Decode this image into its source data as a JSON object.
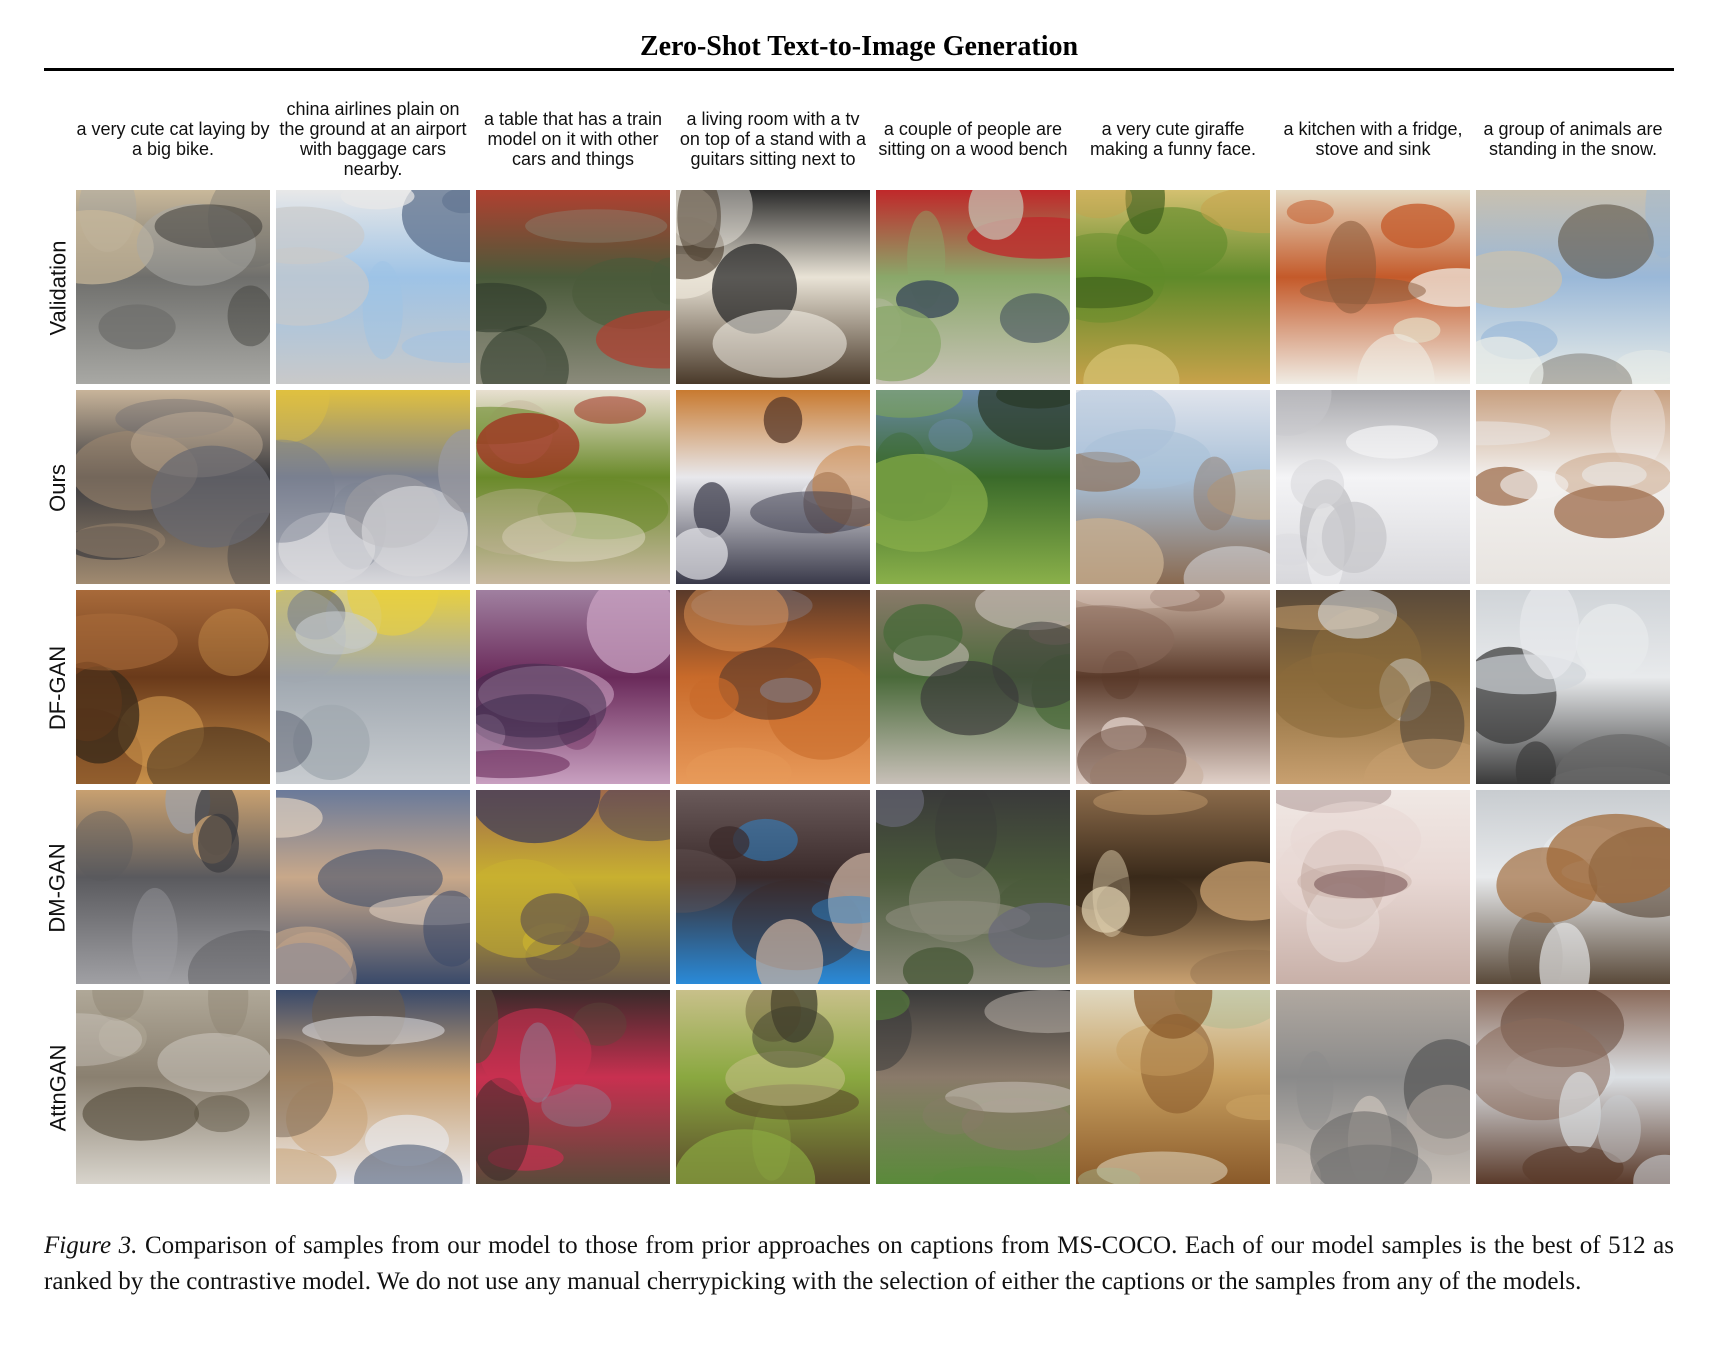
{
  "title": "Zero-Shot Text-to-Image Generation",
  "captions": [
    "a very cute cat laying by a big bike.",
    "china airlines plain on the ground at an airport with baggage cars nearby.",
    "a table that has a train model on it with other cars and things",
    "a living room with a tv on top of a stand with a guitars sitting next to",
    "a couple of people are sitting on a wood bench",
    "a very cute giraffe making a funny face.",
    "a kitchen with a fridge, stove and sink",
    "a group of animals are standing in the snow."
  ],
  "rows": [
    {
      "label": "Validation",
      "palettes": [
        [
          "#6f6f6c",
          "#a8a8a4",
          "#3b3a36",
          "#c9b89a"
        ],
        [
          "#9ec3e6",
          "#c9c9c9",
          "#5b6f8c",
          "#e8e8e8"
        ],
        [
          "#4a5a3a",
          "#8a8a7a",
          "#2e3a2a",
          "#b04030"
        ],
        [
          "#e9e3d6",
          "#4a3a2a",
          "#f4f0e8",
          "#2a2a2a"
        ],
        [
          "#8aa86a",
          "#c7c2b5",
          "#3a4a5a",
          "#c0282a"
        ],
        [
          "#5f8a2a",
          "#c7a24a",
          "#3a5a1a",
          "#d4c070"
        ],
        [
          "#c45a2a",
          "#f0ece4",
          "#8a5a3a",
          "#e4d8c0"
        ],
        [
          "#9ab8d8",
          "#e8ece8",
          "#5a5040",
          "#c8c0b0"
        ]
      ]
    },
    {
      "label": "Ours",
      "palettes": [
        [
          "#3a3a3e",
          "#a08a70",
          "#6a6a70",
          "#c8b49a"
        ],
        [
          "#7a8090",
          "#d8d8dc",
          "#9a9aa0",
          "#e0c040"
        ],
        [
          "#6a8a2a",
          "#c8b8a0",
          "#a03020",
          "#e8e0d0"
        ],
        [
          "#e8e8ec",
          "#3a3a4a",
          "#5a3a2a",
          "#c87a30"
        ],
        [
          "#3a6a2a",
          "#8ab04a",
          "#2a3a2a",
          "#6a8aa8"
        ],
        [
          "#a8c0d8",
          "#8a6a50",
          "#c8b090",
          "#e0e4ec"
        ],
        [
          "#f4f4f6",
          "#d8d8dc",
          "#c8c8cc",
          "#a8a8ac"
        ],
        [
          "#f2f0ee",
          "#e8e4e0",
          "#a07050",
          "#c8a080"
        ]
      ]
    },
    {
      "label": "DF-GAN",
      "palettes": [
        [
          "#6a3a1a",
          "#c8904a",
          "#3a2a1a",
          "#a86a3a"
        ],
        [
          "#a0a8b0",
          "#c8ccd0",
          "#5a6070",
          "#e8d040"
        ],
        [
          "#6a2a5a",
          "#c8a0c0",
          "#3a2a4a",
          "#a080a0"
        ],
        [
          "#c86a2a",
          "#e89a5a",
          "#8a8a9a",
          "#5a3a2a"
        ],
        [
          "#4a6a3a",
          "#c8c0b8",
          "#3a3a3a",
          "#8a7a6a"
        ],
        [
          "#5a3a2a",
          "#e0d0c8",
          "#8a6a5a",
          "#c8b0a0"
        ],
        [
          "#8a6a3a",
          "#c8a070",
          "#e0e8f0",
          "#5a4a3a"
        ],
        [
          "#e8eaec",
          "#3a3a3a",
          "#6a6a6a",
          "#d0d4d8"
        ]
      ]
    },
    {
      "label": "DM-GAN",
      "palettes": [
        [
          "#5a5a5e",
          "#a0a0a4",
          "#3a3a3e",
          "#c8a070"
        ],
        [
          "#c8a88a",
          "#3a4a6a",
          "#e0d0c0",
          "#6a7a9a"
        ],
        [
          "#c8b030",
          "#6a5a4a",
          "#3a3a5a",
          "#a06a4a"
        ],
        [
          "#3a2a2a",
          "#2a8ad8",
          "#c8b0a0",
          "#6a5a5a"
        ],
        [
          "#4a5a3a",
          "#8a8a7a",
          "#6a6a7a",
          "#3a3a3a"
        ],
        [
          "#3a2a1a",
          "#c8a070",
          "#e0d0b0",
          "#8a6a4a"
        ],
        [
          "#e8d8d4",
          "#c8b0a8",
          "#8a6a6a",
          "#f0e8e4"
        ],
        [
          "#e8eaec",
          "#5a4a3a",
          "#a06a3a",
          "#c8ccd0"
        ]
      ]
    },
    {
      "label": "AttnGAN",
      "palettes": [
        [
          "#8a8070",
          "#d8d4cc",
          "#5a5040",
          "#b0a898"
        ],
        [
          "#c8a070",
          "#e8e8ec",
          "#6a5a4a",
          "#3a4a6a"
        ],
        [
          "#c83050",
          "#5a4a3a",
          "#8a8aa0",
          "#3a2a2a"
        ],
        [
          "#8aa840",
          "#5a4a2a",
          "#3a3a2a",
          "#c8c08a"
        ],
        [
          "#8a7a6a",
          "#5a8a3a",
          "#c8c0b8",
          "#3a3a3a"
        ],
        [
          "#c8a060",
          "#8a5a2a",
          "#a8b890",
          "#e0d8c0"
        ],
        [
          "#8a8a8a",
          "#c8c0b8",
          "#5a5a5a",
          "#b0a8a0"
        ],
        [
          "#dce0e4",
          "#5a3a2a",
          "#c8ccd0",
          "#8a6a5a"
        ]
      ]
    }
  ],
  "figure_caption": {
    "label": "Figure 3.",
    "text": " Comparison of samples from our model to those from prior approaches on captions from MS-COCO. Each of our model samples is the best of 512 as ranked by the contrastive model. We do not use any manual cherrypicking with the selection of either the captions or the samples from any of the models."
  }
}
